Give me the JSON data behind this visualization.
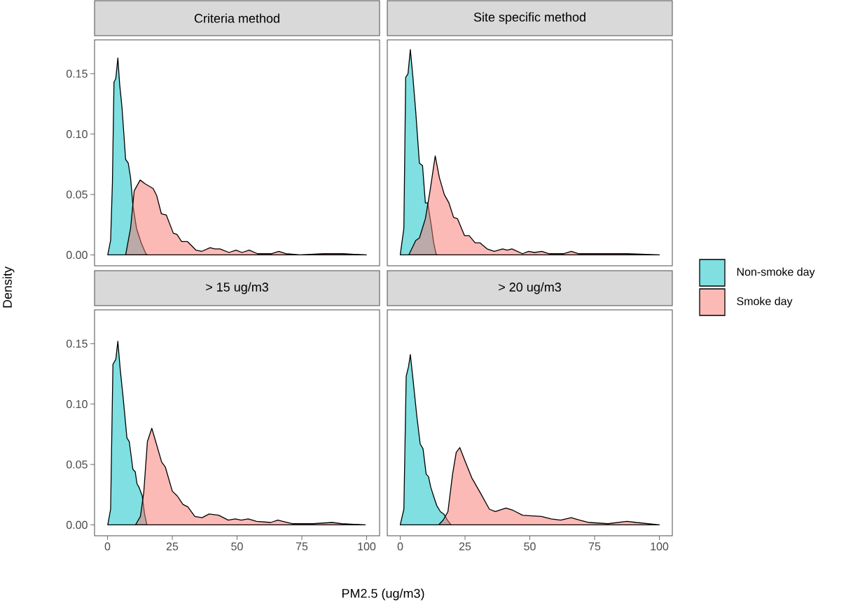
{
  "chart_data": [
    {
      "type": "area",
      "title": "Criteria method",
      "ylabel": "Density",
      "xlim": [
        -5,
        105
      ],
      "ylim": [
        -0.009,
        0.178
      ],
      "yticks": [
        {
          "value": 0,
          "label": "0.00"
        },
        {
          "value": 0.05,
          "label": "0.05"
        },
        {
          "value": 0.1,
          "label": "0.10"
        },
        {
          "value": 0.15,
          "label": "0.15"
        }
      ],
      "tick_labels": "y",
      "legend": "right",
      "grid": false,
      "series": [
        {
          "name": "Non-smoke day",
          "color": "#00bfc4",
          "x": [
            0.1,
            1.2,
            1.9,
            2.5,
            3.2,
            4.0,
            4.7,
            5.6,
            7.0,
            8.0,
            8.9,
            9.8,
            11.2,
            13.0,
            14.8,
            15.5
          ],
          "values": [
            0,
            0.012,
            0.06,
            0.143,
            0.146,
            0.163,
            0.141,
            0.122,
            0.079,
            0.076,
            0.064,
            0.041,
            0.022,
            0.01,
            0.001,
            0
          ]
        },
        {
          "name": "Smoke day",
          "color": "#f8766d",
          "x": [
            7.0,
            8.9,
            10.3,
            12.6,
            14.4,
            17.6,
            19.0,
            20.8,
            22.7,
            25.4,
            26.8,
            28.6,
            30.9,
            34.1,
            36.4,
            39.6,
            41.4,
            43.4,
            46.9,
            49.6,
            51.9,
            54.7,
            57.9,
            63.4,
            66.1,
            68.8,
            74.3,
            83.5,
            87.1,
            90.8,
            99.9
          ],
          "values": [
            0,
            0.022,
            0.053,
            0.062,
            0.059,
            0.055,
            0.049,
            0.034,
            0.033,
            0.018,
            0.017,
            0.011,
            0.011,
            0.004,
            0.003,
            0.006,
            0.005,
            0.005,
            0.002,
            0.004,
            0.002,
            0.004,
            0.001,
            0.001,
            0.003,
            0.001,
            0,
            0.001,
            0.001,
            0.001,
            0
          ]
        }
      ]
    },
    {
      "type": "area",
      "title": "Site specific method",
      "xlim": [
        -5,
        105
      ],
      "ylim": [
        -0.009,
        0.178
      ],
      "tick_labels": false,
      "grid": false,
      "series": [
        {
          "color": "#00bfc4",
          "x": [
            0.0,
            1.4,
            2.1,
            3.0,
            3.9,
            4.9,
            6.0,
            7.4,
            8.6,
            9.7,
            10.6,
            12.0,
            12.9,
            13.8,
            14.3
          ],
          "values": [
            0,
            0.022,
            0.147,
            0.15,
            0.17,
            0.147,
            0.118,
            0.076,
            0.074,
            0.043,
            0.043,
            0.024,
            0.01,
            0.001,
            0
          ]
        },
        {
          "color": "#f8766d",
          "x": [
            3.3,
            6.0,
            7.4,
            9.7,
            11.5,
            13.5,
            15.1,
            17.0,
            18.8,
            20.6,
            22.1,
            24.8,
            26.6,
            28.9,
            30.8,
            33.5,
            36.3,
            39.5,
            41.3,
            43.1,
            47.2,
            49.5,
            51.8,
            54.6,
            57.3,
            63.2,
            66.0,
            68.7,
            83.8,
            87.4,
            100
          ],
          "values": [
            0,
            0.012,
            0.014,
            0.03,
            0.053,
            0.082,
            0.064,
            0.05,
            0.043,
            0.031,
            0.03,
            0.016,
            0.016,
            0.01,
            0.01,
            0.005,
            0.003,
            0.005,
            0.004,
            0.005,
            0.001,
            0.003,
            0.002,
            0.003,
            0.001,
            0.001,
            0.003,
            0.001,
            0.001,
            0.001,
            0
          ]
        }
      ]
    },
    {
      "type": "area",
      "title": "> 15 ug/m3",
      "xlabel": "PM2.5 (ug/m3)",
      "xlim": [
        -5,
        105
      ],
      "ylim": [
        -0.009,
        0.178
      ],
      "xticks": [
        0,
        25,
        50,
        75,
        100
      ],
      "yticks": [
        {
          "value": 0,
          "label": "0.00"
        },
        {
          "value": 0.05,
          "label": "0.05"
        },
        {
          "value": 0.1,
          "label": "0.10"
        },
        {
          "value": 0.15,
          "label": "0.15"
        }
      ],
      "grid": false,
      "series": [
        {
          "color": "#00bfc4",
          "x": [
            0.1,
            1.2,
            2.1,
            3.2,
            4.0,
            4.9,
            6.1,
            7.5,
            8.4,
            9.8,
            10.7,
            11.4,
            12.2,
            13.4,
            14.3,
            15.2
          ],
          "values": [
            0,
            0.013,
            0.133,
            0.137,
            0.152,
            0.129,
            0.104,
            0.072,
            0.069,
            0.046,
            0.044,
            0.034,
            0.031,
            0.024,
            0.009,
            0
          ]
        },
        {
          "color": "#f8766d",
          "x": [
            10.8,
            12.7,
            14.0,
            15.4,
            17.1,
            18.6,
            20.9,
            22.3,
            25.0,
            26.9,
            29.1,
            31.0,
            33.7,
            36.5,
            39.2,
            42.9,
            46.6,
            49.3,
            51.6,
            54.3,
            57.5,
            63.0,
            65.7,
            71.2,
            73.9,
            79.4,
            86.7,
            90.4,
            99.5
          ],
          "values": [
            0,
            0.007,
            0.027,
            0.069,
            0.08,
            0.069,
            0.052,
            0.048,
            0.028,
            0.024,
            0.017,
            0.015,
            0.007,
            0.006,
            0.009,
            0.008,
            0.004,
            0.005,
            0.004,
            0.005,
            0.003,
            0.002,
            0.004,
            0.001,
            0.001,
            0.001,
            0.002,
            0.001,
            0
          ]
        }
      ]
    },
    {
      "type": "area",
      "title": "> 20 ug/m3",
      "xlim": [
        -5,
        105
      ],
      "ylim": [
        -0.009,
        0.178
      ],
      "xticks": [
        0,
        25,
        50,
        75,
        100
      ],
      "tick_labels": "x",
      "grid": false,
      "series": [
        {
          "color": "#00bfc4",
          "x": [
            0.0,
            1.4,
            2.3,
            3.2,
            3.9,
            5.0,
            6.4,
            7.7,
            8.8,
            10.0,
            10.9,
            11.8,
            13.0,
            14.1,
            15.5,
            16.8,
            18.2,
            19.6
          ],
          "values": [
            0,
            0.013,
            0.123,
            0.131,
            0.141,
            0.119,
            0.09,
            0.067,
            0.063,
            0.042,
            0.04,
            0.031,
            0.023,
            0.016,
            0.011,
            0.009,
            0.004,
            0
          ]
        },
        {
          "color": "#f8766d",
          "x": [
            14.8,
            16.6,
            18.4,
            20.2,
            21.6,
            23.0,
            24.8,
            27.6,
            30.8,
            34.4,
            36.7,
            40.8,
            43.6,
            47.2,
            54.5,
            58.2,
            61.9,
            66.0,
            69.2,
            72.9,
            80.2,
            87.5,
            91.1,
            100
          ],
          "values": [
            0,
            0.004,
            0.011,
            0.042,
            0.06,
            0.064,
            0.054,
            0.039,
            0.027,
            0.013,
            0.011,
            0.014,
            0.012,
            0.008,
            0.007,
            0.005,
            0.004,
            0.006,
            0.004,
            0.002,
            0.001,
            0.003,
            0.002,
            0
          ]
        }
      ]
    }
  ]
}
